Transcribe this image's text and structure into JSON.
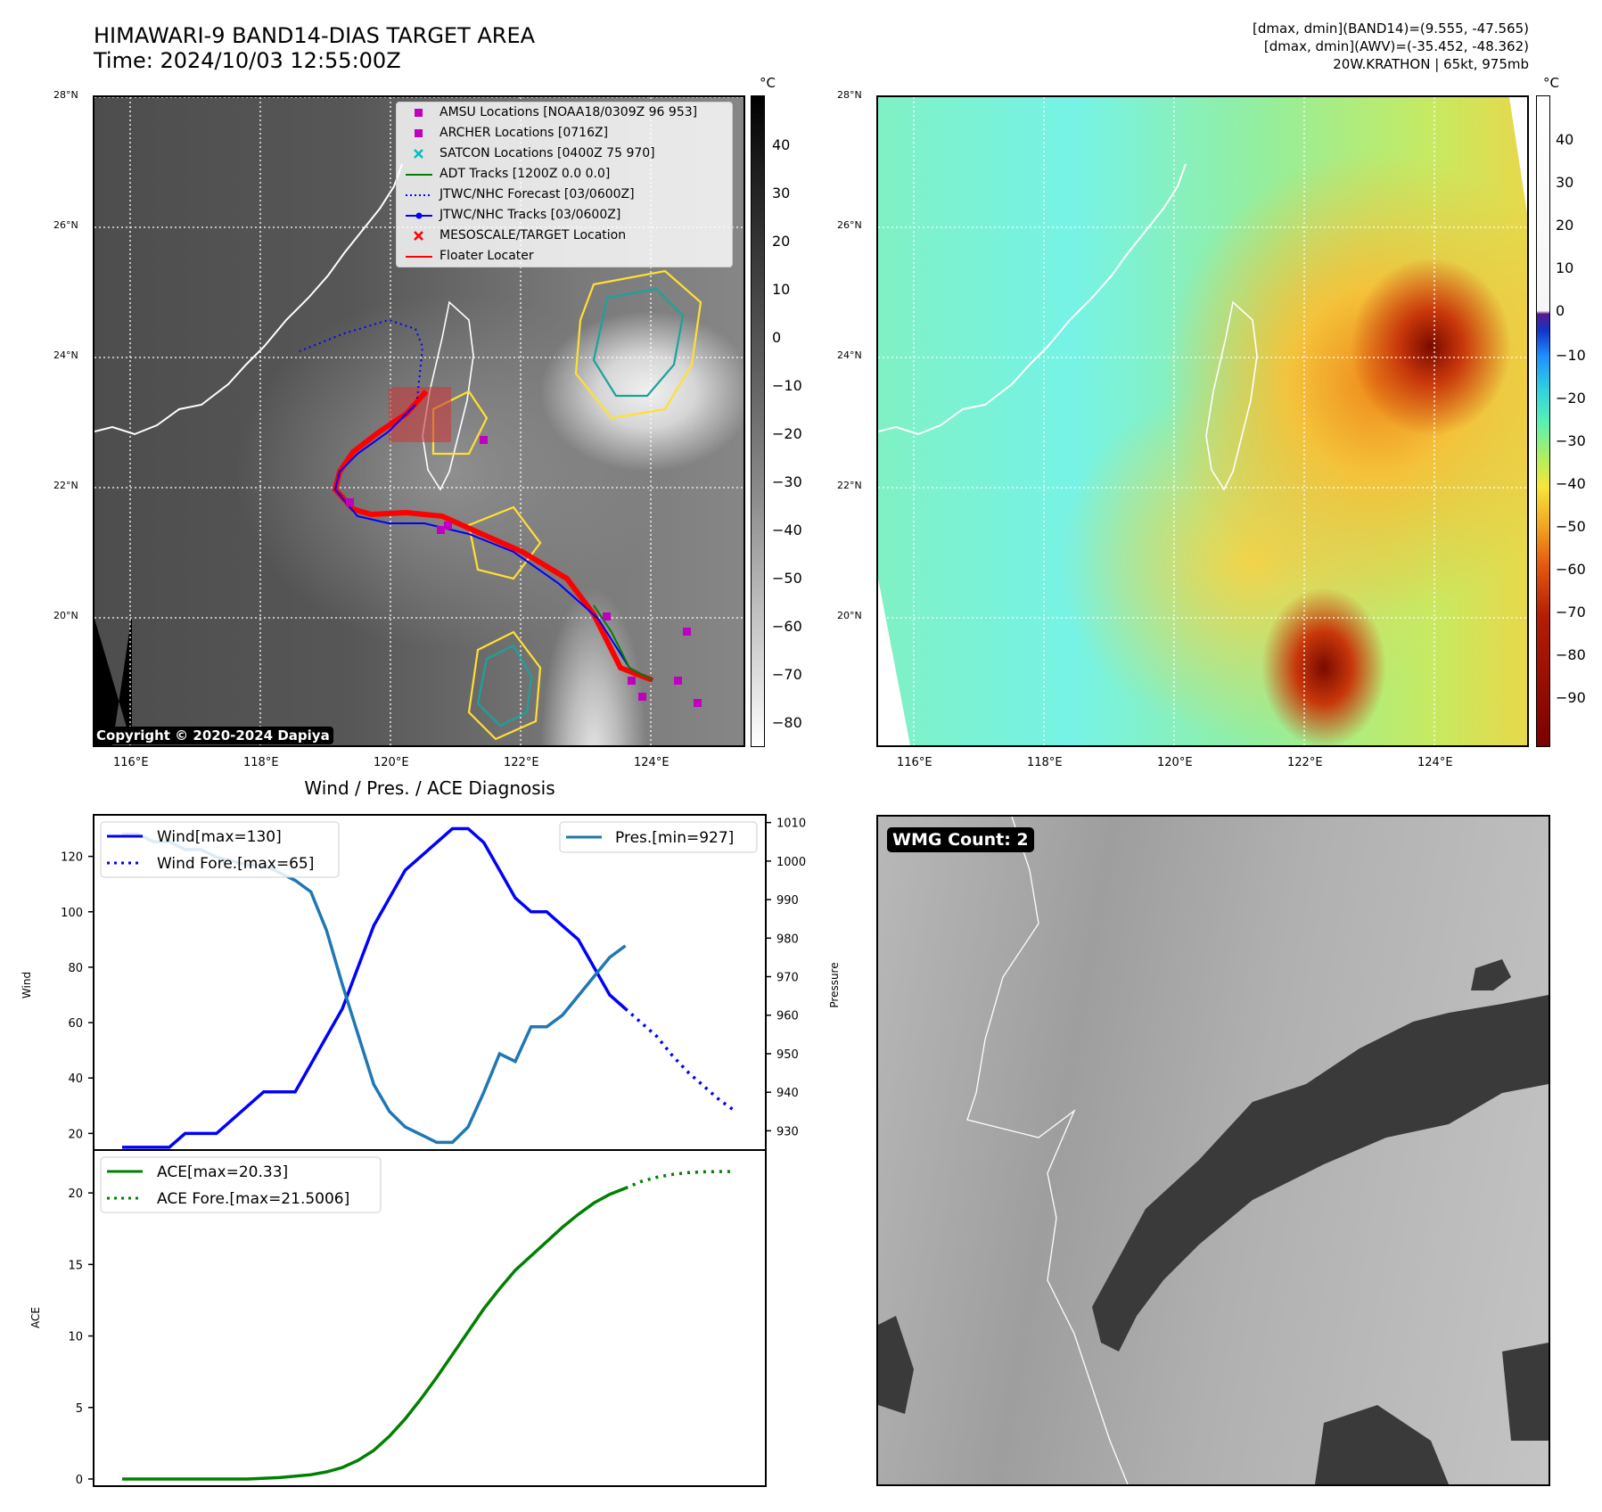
{
  "header": {
    "title_line1": "HIMAWARI-9 BAND14-DIAS TARGET AREA",
    "title_line2": "Time: 2024/10/03 12:55:00Z",
    "info_line1": "[dmax, dmin](BAND14)=(9.555, -47.565)",
    "info_line2": "[dmax, dmin](AWV)=(-35.452, -48.362)",
    "info_line3": "20W.KRATHON | 65kt, 975mb"
  },
  "ir_map": {
    "copyright": "Copyright © 2020-2024 Dapiya",
    "lat_labels": [
      "28°N",
      "26°N",
      "24°N",
      "22°N",
      "20°N"
    ],
    "lon_labels": [
      "116°E",
      "118°E",
      "120°E",
      "122°E",
      "124°E"
    ],
    "colorbar_unit": "°C",
    "colorbar_ticks": [
      "40",
      "30",
      "20",
      "10",
      "0",
      "−10",
      "−20",
      "−30",
      "−40",
      "−50",
      "−60",
      "−70",
      "−80"
    ],
    "legend": [
      {
        "label": "AMSU Locations [NOAA18/0309Z 96 953]",
        "color": "#bf00bf",
        "marker": "square"
      },
      {
        "label": "ARCHER Locations [0716Z]",
        "color": "#bf00bf",
        "marker": "square"
      },
      {
        "label": "SATCON Locations [0400Z 75 970]",
        "color": "#00bfbf",
        "marker": "x"
      },
      {
        "label": "ADT Tracks [1200Z 0.0 0.0]",
        "color": "#008000",
        "marker": "line"
      },
      {
        "label": "JTWC/NHC Forecast [03/0600Z]",
        "color": "#0000ff",
        "marker": "dotted"
      },
      {
        "label": "JTWC/NHC Tracks [03/0600Z]",
        "color": "#0000ff",
        "marker": "line-dot"
      },
      {
        "label": "MESOSCALE/TARGET Location",
        "color": "#ff0000",
        "marker": "x"
      },
      {
        "label": "Floater Locater",
        "color": "#ff0000",
        "marker": "line"
      }
    ]
  },
  "awv_map": {
    "lat_labels": [
      "28°N",
      "26°N",
      "24°N",
      "22°N",
      "20°N"
    ],
    "lon_labels": [
      "116°E",
      "118°E",
      "120°E",
      "122°E",
      "124°E"
    ],
    "colorbar_unit": "°C",
    "colorbar_ticks": [
      "40",
      "30",
      "20",
      "10",
      "0",
      "−10",
      "−20",
      "−30",
      "−40",
      "−50",
      "−60",
      "−70",
      "−80",
      "−90"
    ]
  },
  "wmg_panel": {
    "badge": "WMG Count: 2"
  },
  "chart_data": [
    {
      "type": "line",
      "title": "Wind / Pres. / ACE Diagnosis",
      "ylabel": "Wind",
      "ylabel_right": "Pressure",
      "ylim": [
        14,
        135
      ],
      "ylim_right": [
        925,
        1012
      ],
      "yticks": [
        20,
        40,
        60,
        80,
        100,
        120
      ],
      "yticks_right": [
        930,
        940,
        950,
        960,
        970,
        980,
        990,
        1000,
        1010
      ],
      "x": [
        0,
        1,
        2,
        3,
        4,
        5,
        6,
        7,
        8,
        9,
        10,
        11,
        12,
        13,
        14,
        15,
        16,
        17,
        18,
        19,
        20,
        21,
        22,
        23,
        24,
        25,
        26,
        27,
        28,
        29,
        30,
        31,
        32,
        33,
        34,
        35,
        36,
        37,
        38,
        39
      ],
      "series": [
        {
          "name": "Wind[max=130]",
          "color": "#0000ff",
          "style": "solid",
          "x": [
            0,
            1,
            2,
            3,
            4,
            5,
            6,
            7,
            8,
            9,
            10,
            11,
            12,
            13,
            14,
            15,
            16,
            17,
            18,
            19,
            20,
            21,
            22,
            23,
            24,
            25,
            26,
            27,
            28,
            29,
            30,
            31,
            32
          ],
          "values": [
            15,
            15,
            15,
            15,
            20,
            20,
            20,
            25,
            30,
            35,
            35,
            35,
            45,
            55,
            65,
            80,
            95,
            105,
            115,
            120,
            125,
            130,
            130,
            125,
            115,
            105,
            100,
            100,
            95,
            90,
            80,
            70,
            65
          ]
        },
        {
          "name": "Wind Fore.[max=65]",
          "color": "#0000ff",
          "style": "dotted",
          "x": [
            32,
            33,
            34,
            35,
            36,
            37,
            38,
            39
          ],
          "values": [
            65,
            60,
            55,
            48,
            42,
            37,
            32,
            28
          ]
        },
        {
          "name": "Pres.[min=927]",
          "color": "#1f77b4",
          "style": "solid",
          "axis": "right",
          "x": [
            0,
            1,
            2,
            3,
            4,
            5,
            6,
            7,
            8,
            9,
            10,
            11,
            12,
            13,
            14,
            15,
            16,
            17,
            18,
            19,
            20,
            21,
            22,
            23,
            24,
            25,
            26,
            27,
            28,
            29,
            30,
            31,
            32
          ],
          "values": [
            1007,
            1007,
            1005,
            1005,
            1003,
            1003,
            1001,
            1000,
            999,
            999,
            997,
            995,
            992,
            982,
            968,
            955,
            942,
            935,
            931,
            929,
            927,
            927,
            931,
            940,
            950,
            948,
            957,
            957,
            960,
            965,
            970,
            975,
            978
          ]
        }
      ],
      "legend_left": [
        "Wind[max=130]",
        "Wind Fore.[max=65]"
      ],
      "legend_right": [
        "Pres.[min=927]"
      ]
    },
    {
      "type": "line",
      "ylabel": "ACE",
      "ylim": [
        -0.5,
        23
      ],
      "yticks": [
        0,
        5,
        10,
        15,
        20
      ],
      "series": [
        {
          "name": "ACE[max=20.33]",
          "color": "#008000",
          "style": "solid",
          "x": [
            0,
            2,
            4,
            6,
            8,
            10,
            12,
            13,
            14,
            15,
            16,
            17,
            18,
            19,
            20,
            21,
            22,
            23,
            24,
            25,
            26,
            27,
            28,
            29,
            30,
            31,
            32
          ],
          "values": [
            0,
            0,
            0,
            0,
            0,
            0.1,
            0.3,
            0.5,
            0.8,
            1.3,
            2.0,
            3.0,
            4.2,
            5.6,
            7.1,
            8.7,
            10.3,
            11.9,
            13.3,
            14.6,
            15.6,
            16.6,
            17.6,
            18.5,
            19.3,
            19.9,
            20.33
          ]
        },
        {
          "name": "ACE Fore.[max=21.5006]",
          "color": "#008000",
          "style": "dotted",
          "x": [
            32,
            33,
            34,
            35,
            36,
            37,
            38,
            39
          ],
          "values": [
            20.33,
            20.8,
            21.1,
            21.3,
            21.42,
            21.48,
            21.5,
            21.5006
          ]
        }
      ]
    }
  ]
}
